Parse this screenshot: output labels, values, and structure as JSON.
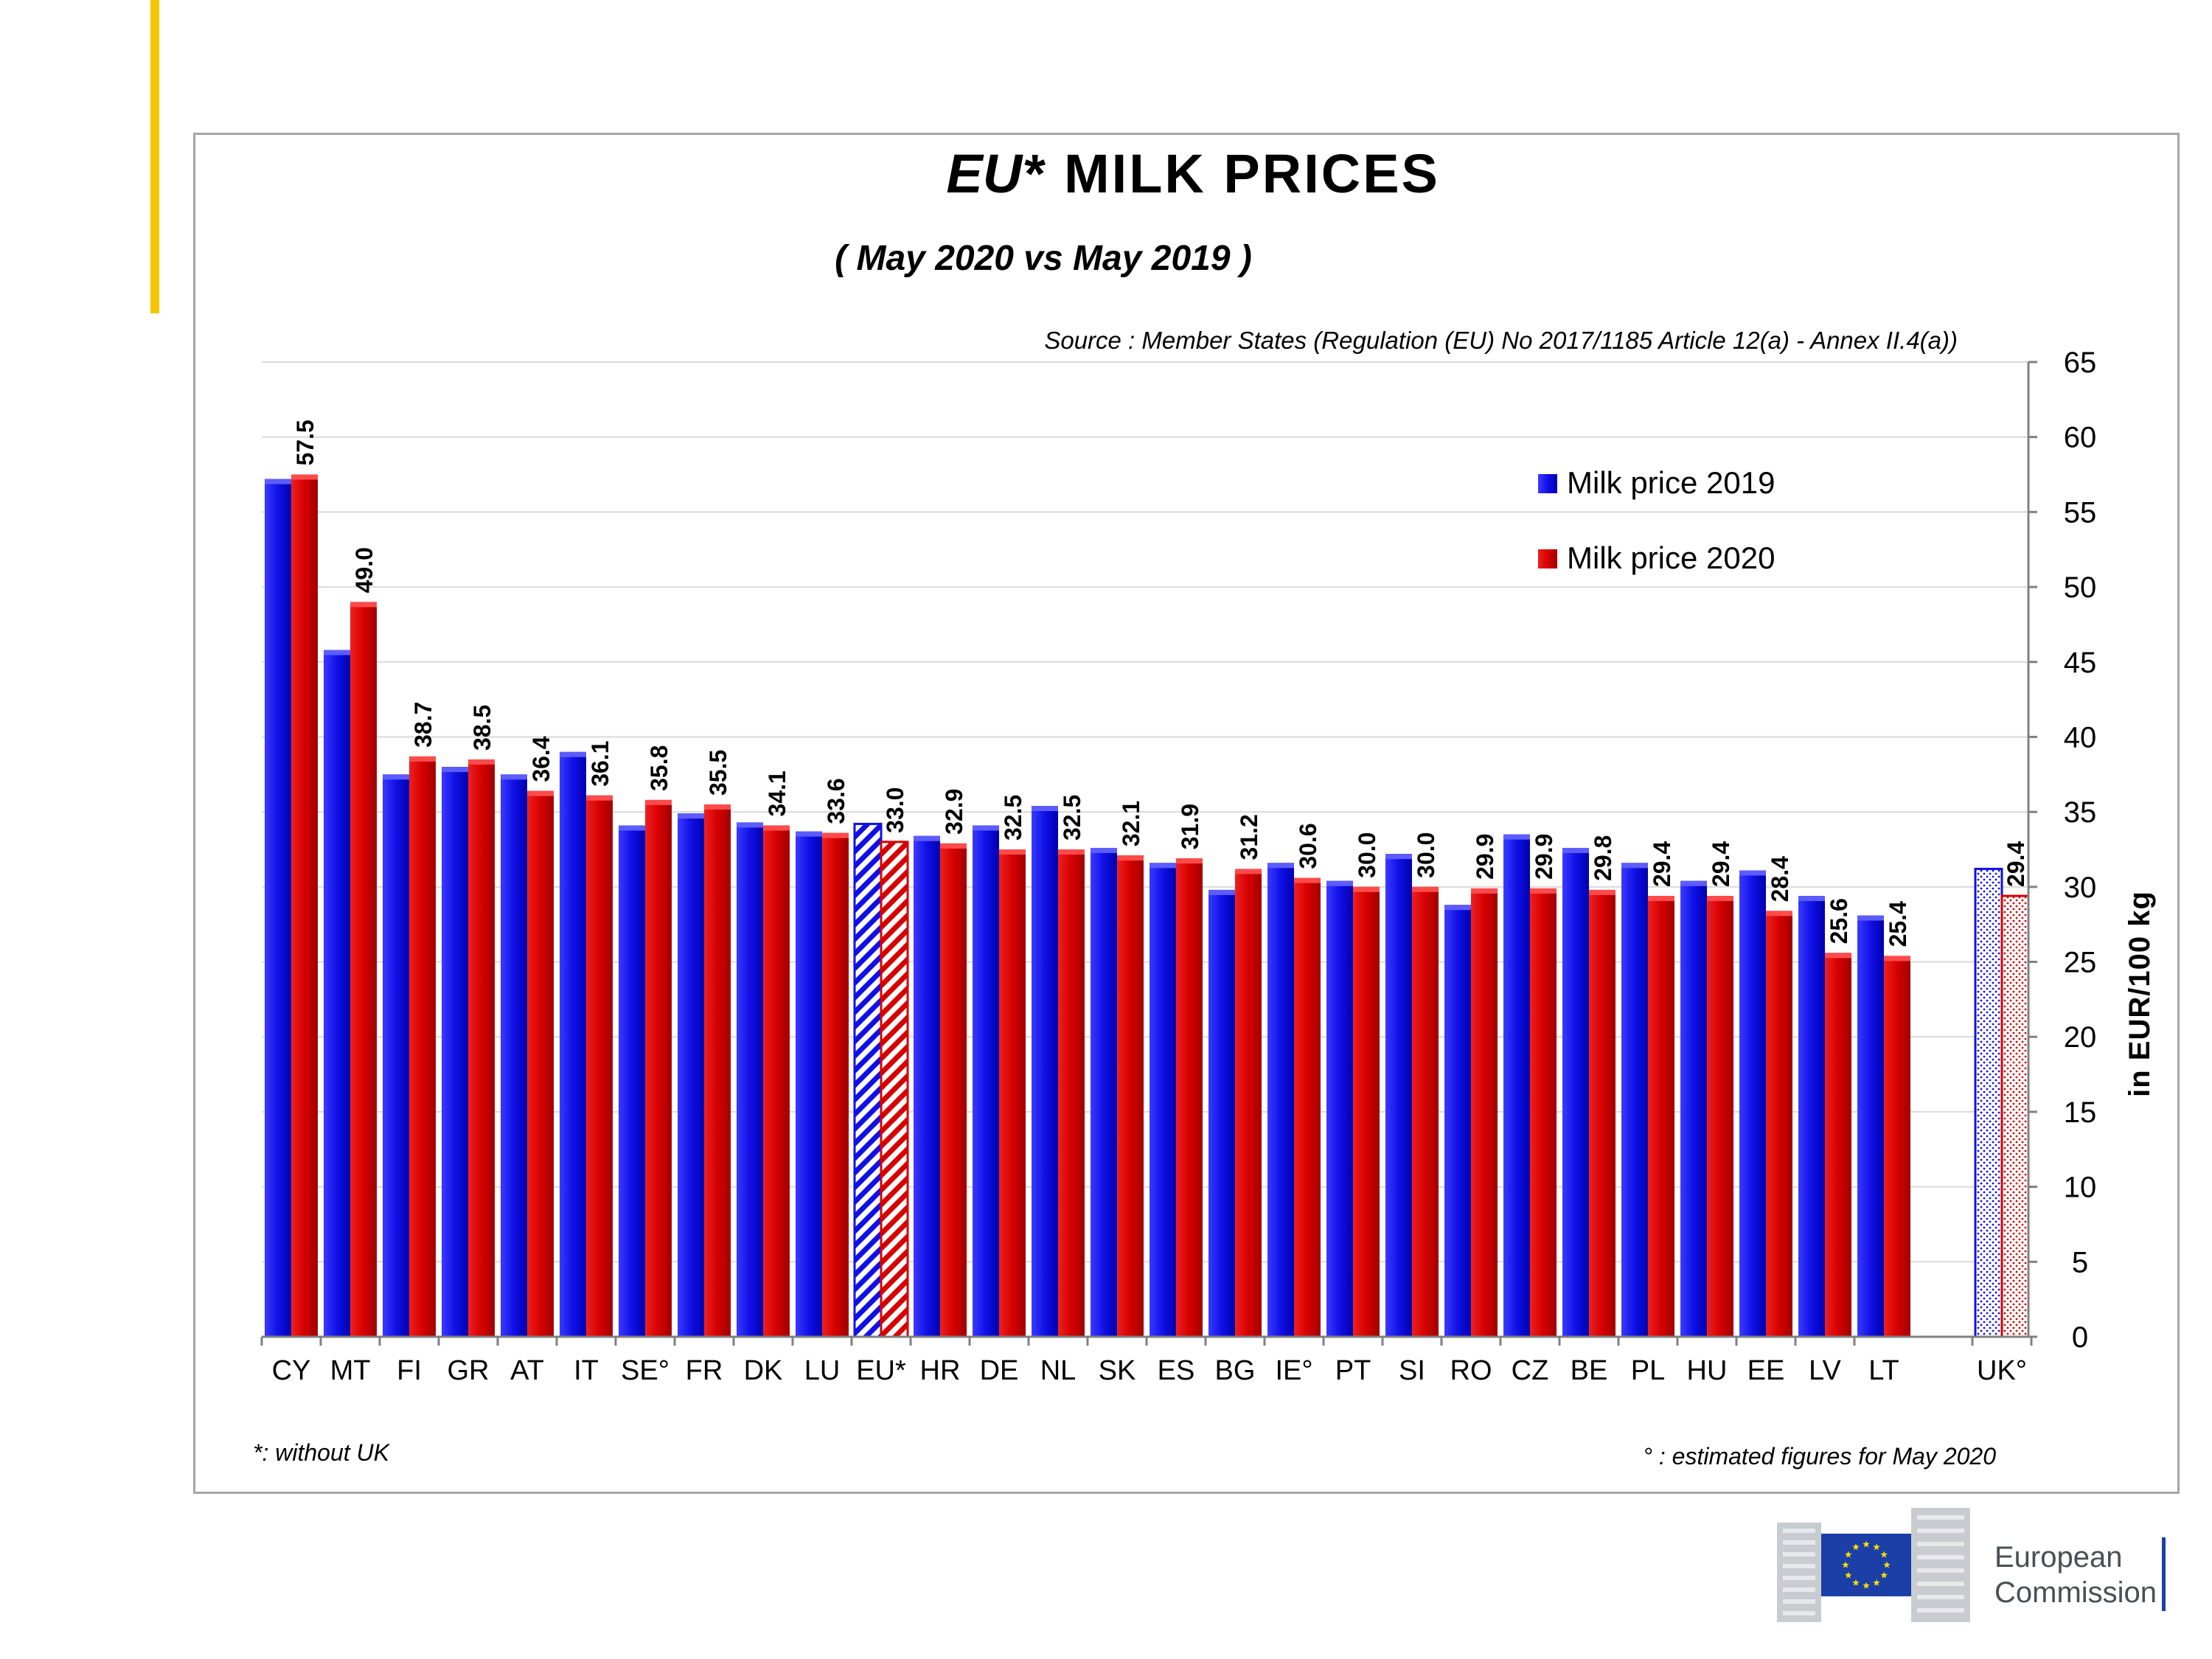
{
  "page": {
    "accent_color": "#f5c400",
    "title_prefix": "EU*",
    "title_main": "MILK  PRICES",
    "subtitle": "( May 2020   vs   May 2019 )",
    "source": "Source : Member States (Regulation (EU) No 2017/1185  Article 12(a) - Annex II.4(a))",
    "footnote_left": "*: without  UK",
    "footnote_right": "° : estimated figures for May 2020"
  },
  "logo": {
    "line1": "European",
    "line2": "Commission"
  },
  "chart_data": {
    "type": "bar",
    "title": "EU*  MILK  PRICES",
    "subtitle": "( May 2020   vs   May 2019 )",
    "xlabel": "",
    "ylabel": "in EUR/100 kg",
    "ylim": [
      0,
      65
    ],
    "yticks": [
      0,
      5,
      10,
      15,
      20,
      25,
      30,
      35,
      40,
      45,
      50,
      55,
      60,
      65
    ],
    "y_axis_side": "right",
    "grid": true,
    "legend_position": "top-right",
    "categories": [
      "CY",
      "MT",
      "FI",
      "GR",
      "AT",
      "IT",
      "SE°",
      "FR",
      "DK",
      "LU",
      "EU*",
      "HR",
      "DE",
      "NL",
      "SK",
      "ES",
      "BG",
      "IE°",
      "PT",
      "SI",
      "RO",
      "CZ",
      "BE",
      "PL",
      "HU",
      "EE",
      "LV",
      "LT",
      "UK°"
    ],
    "series": [
      {
        "name": "Milk price 2019",
        "color": "#1010e6",
        "values": [
          57.2,
          45.8,
          37.5,
          38.0,
          37.5,
          39.0,
          34.1,
          34.9,
          34.3,
          33.7,
          34.2,
          33.4,
          34.1,
          35.4,
          32.6,
          31.6,
          29.8,
          31.6,
          30.4,
          32.2,
          28.8,
          33.5,
          32.6,
          31.6,
          30.4,
          31.1,
          29.4,
          28.1,
          31.2
        ]
      },
      {
        "name": "Milk price 2020",
        "color": "#d60000",
        "values": [
          57.5,
          49.0,
          38.7,
          38.5,
          36.4,
          36.1,
          35.8,
          35.5,
          34.1,
          33.6,
          33.0,
          32.9,
          32.5,
          32.5,
          32.1,
          31.9,
          31.2,
          30.6,
          30.0,
          30.0,
          29.9,
          29.9,
          29.8,
          29.4,
          29.4,
          28.4,
          25.6,
          25.4,
          29.4
        ]
      }
    ],
    "data_labels": [
      "57.5",
      "49.0",
      "38.7",
      "38.5",
      "36.4",
      "36.1",
      "35.8",
      "35.5",
      "34.1",
      "33.6",
      "33.0",
      "32.9",
      "32.5",
      "32.5",
      "32.1",
      "31.9",
      "31.2",
      "30.6",
      "30.0",
      "30.0",
      "29.9",
      "29.9",
      "29.8",
      "29.4",
      "29.4",
      "28.4",
      "25.6",
      "25.4",
      "29.4"
    ],
    "patterns": {
      "EU*": "diagonal-hatch",
      "UK°": "dotted"
    }
  }
}
